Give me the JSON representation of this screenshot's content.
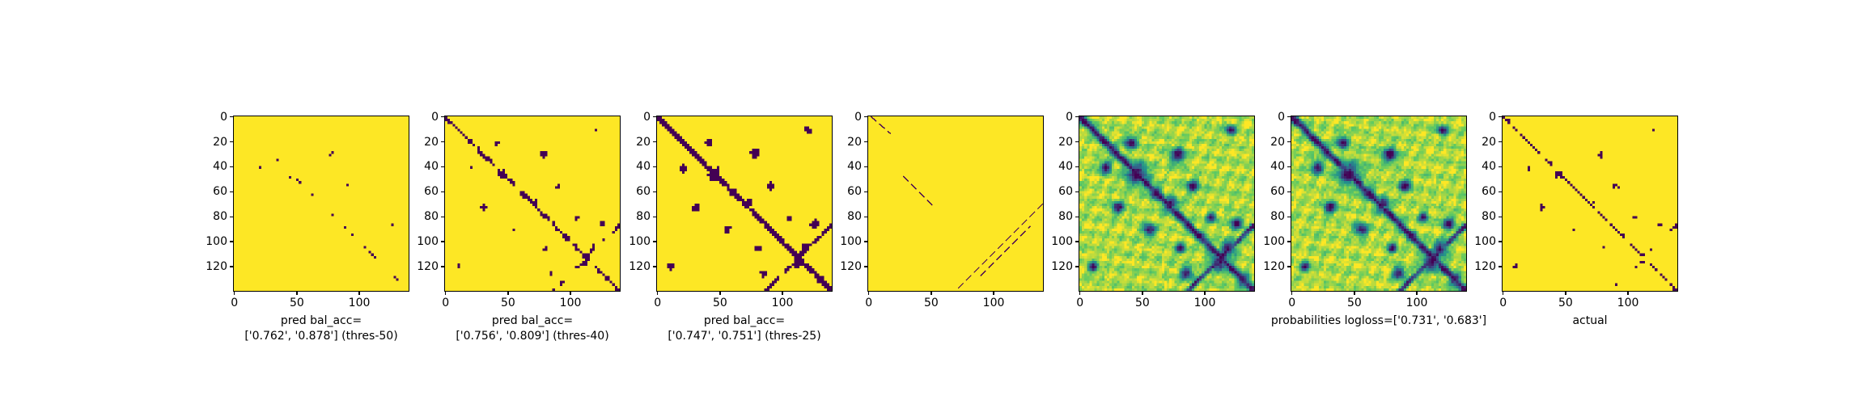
{
  "chart_data": [
    {
      "type": "heatmap",
      "name": "pred-thres-50",
      "caption": "pred bal_acc=\n['0.762', '0.878'] (thres-50)",
      "matrix_size": 140,
      "x_ticks": [
        0,
        50,
        100
      ],
      "y_ticks": [
        0,
        20,
        40,
        60,
        80,
        100,
        120
      ],
      "binary": true,
      "density": 0.06
    },
    {
      "type": "heatmap",
      "name": "pred-thres-40",
      "caption": "pred bal_acc=\n['0.756', '0.809'] (thres-40)",
      "matrix_size": 140,
      "x_ticks": [
        0,
        50,
        100
      ],
      "y_ticks": [
        0,
        20,
        40,
        60,
        80,
        100,
        120
      ],
      "binary": true,
      "density": 0.13
    },
    {
      "type": "heatmap",
      "name": "pred-thres-25",
      "caption": "pred bal_acc=\n['0.747', '0.751'] (thres-25)",
      "matrix_size": 140,
      "x_ticks": [
        0,
        50,
        100
      ],
      "y_ticks": [
        0,
        20,
        40,
        60,
        80,
        100,
        120
      ],
      "binary": true,
      "density": 0.19
    },
    {
      "type": "heatmap",
      "name": "diagonal-pattern",
      "caption": "",
      "matrix_size": 140,
      "x_ticks": [
        0,
        50,
        100
      ],
      "y_ticks": [
        0,
        20,
        40,
        60,
        80,
        100,
        120
      ],
      "binary": true,
      "density": 0.0
    },
    {
      "type": "heatmap",
      "name": "probabilities-raw",
      "caption": "",
      "matrix_size": 140,
      "x_ticks": [
        0,
        50,
        100
      ],
      "y_ticks": [
        0,
        20,
        40,
        60,
        80,
        100,
        120
      ],
      "binary": false,
      "density": 0.25
    },
    {
      "type": "heatmap",
      "name": "probabilities",
      "caption": "probabilities logloss=['0.731', '0.683']",
      "matrix_size": 140,
      "x_ticks": [
        0,
        50,
        100
      ],
      "y_ticks": [
        0,
        20,
        40,
        60,
        80,
        100,
        120
      ],
      "binary": false,
      "density": 0.25
    },
    {
      "type": "heatmap",
      "name": "actual",
      "caption": "actual",
      "matrix_size": 140,
      "x_ticks": [
        0,
        50,
        100
      ],
      "y_ticks": [
        0,
        20,
        40,
        60,
        80,
        100,
        120
      ],
      "binary": true,
      "density": 0.03
    }
  ],
  "colors": {
    "high": "#fde725",
    "low": "#440154",
    "mid1": "#21918c",
    "mid2": "#5ec962",
    "mid3": "#3b528b"
  }
}
